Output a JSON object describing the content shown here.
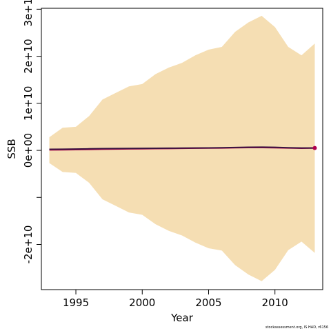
{
  "chart_data": {
    "type": "line",
    "title": "",
    "xlabel": "Year",
    "ylabel": "SSB",
    "xlim": [
      1992.4,
      2013.6
    ],
    "ylim": [
      -29600000000.0,
      30200000000.0
    ],
    "x_ticks": [
      1995,
      2000,
      2005,
      2010
    ],
    "x_tick_labels": [
      "1995",
      "2000",
      "2005",
      "2010"
    ],
    "y_ticks": [
      -20000000000.0,
      -10000000000.0,
      0,
      10000000000.0,
      20000000000.0,
      30000000000.0
    ],
    "y_tick_labels": [
      "-2e+10",
      "",
      "0e+00",
      "1e+10",
      "2e+10",
      "3e+10"
    ],
    "grid": false,
    "legend": "none",
    "x": [
      1993,
      1994,
      1995,
      1996,
      1997,
      1998,
      1999,
      2000,
      2001,
      2002,
      2003,
      2004,
      2005,
      2006,
      2007,
      2008,
      2009,
      2010,
      2011,
      2012,
      2013
    ],
    "series": [
      {
        "type": "band",
        "upper": [
          2800000000.0,
          4800000000.0,
          5000000000.0,
          7300000000.0,
          10800000000.0,
          12200000000.0,
          13600000000.0,
          14100000000.0,
          16200000000.0,
          17600000000.0,
          18600000000.0,
          20200000000.0,
          21400000000.0,
          22000000000.0,
          25200000000.0,
          27200000000.0,
          28600000000.0,
          26200000000.0,
          22000000000.0,
          20200000000.0,
          22700000000.0
        ],
        "lower": [
          -2700000000.0,
          -4600000000.0,
          -4800000000.0,
          -6900000000.0,
          -10400000000.0,
          -11800000000.0,
          -13200000000.0,
          -13700000000.0,
          -15700000000.0,
          -17100000000.0,
          -18100000000.0,
          -19600000000.0,
          -20800000000.0,
          -21300000000.0,
          -24400000000.0,
          -26400000000.0,
          -27800000000.0,
          -25400000000.0,
          -21200000000.0,
          -19400000000.0,
          -21800000000.0
        ],
        "color": "#f5deb3"
      },
      {
        "type": "line",
        "values": [
          100000000.0,
          120000000.0,
          150000000.0,
          190000000.0,
          250000000.0,
          290000000.0,
          320000000.0,
          340000000.0,
          370000000.0,
          400000000.0,
          430000000.0,
          460000000.0,
          490000000.0,
          510000000.0,
          560000000.0,
          590000000.0,
          600000000.0,
          560000000.0,
          500000000.0,
          450000000.0,
          500000000.0
        ],
        "color": "#b0004e"
      },
      {
        "type": "line",
        "values": [
          220000000.0,
          250000000.0,
          290000000.0,
          330000000.0,
          370000000.0,
          390000000.0,
          410000000.0,
          420000000.0,
          440000000.0,
          460000000.0,
          480000000.0,
          500000000.0,
          520000000.0,
          550000000.0,
          620000000.0,
          660000000.0,
          690000000.0,
          650000000.0,
          560000000.0,
          500000000.0,
          510000000.0
        ],
        "color": "#3a1440"
      }
    ],
    "last_point": {
      "x": 2013,
      "y": 500000000.0,
      "color": "#b0004e"
    }
  },
  "credit": "stockassessment.org, IS HAD, r6156"
}
